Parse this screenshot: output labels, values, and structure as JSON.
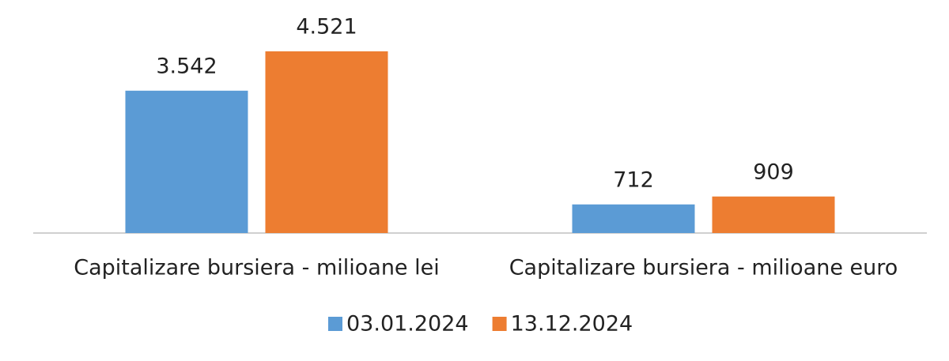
{
  "chart_data": {
    "type": "bar",
    "categories": [
      "Capitalizare bursiera - milioane lei",
      "Capitalizare bursiera - milioane euro"
    ],
    "series": [
      {
        "name": "03.01.2024",
        "color": "#5b9bd5",
        "values": [
          3542,
          712
        ],
        "value_labels": [
          "3.542",
          "712"
        ]
      },
      {
        "name": "13.12.2024",
        "color": "#ed7d31",
        "values": [
          4521,
          909
        ],
        "value_labels": [
          "4.521",
          "909"
        ]
      }
    ]
  }
}
